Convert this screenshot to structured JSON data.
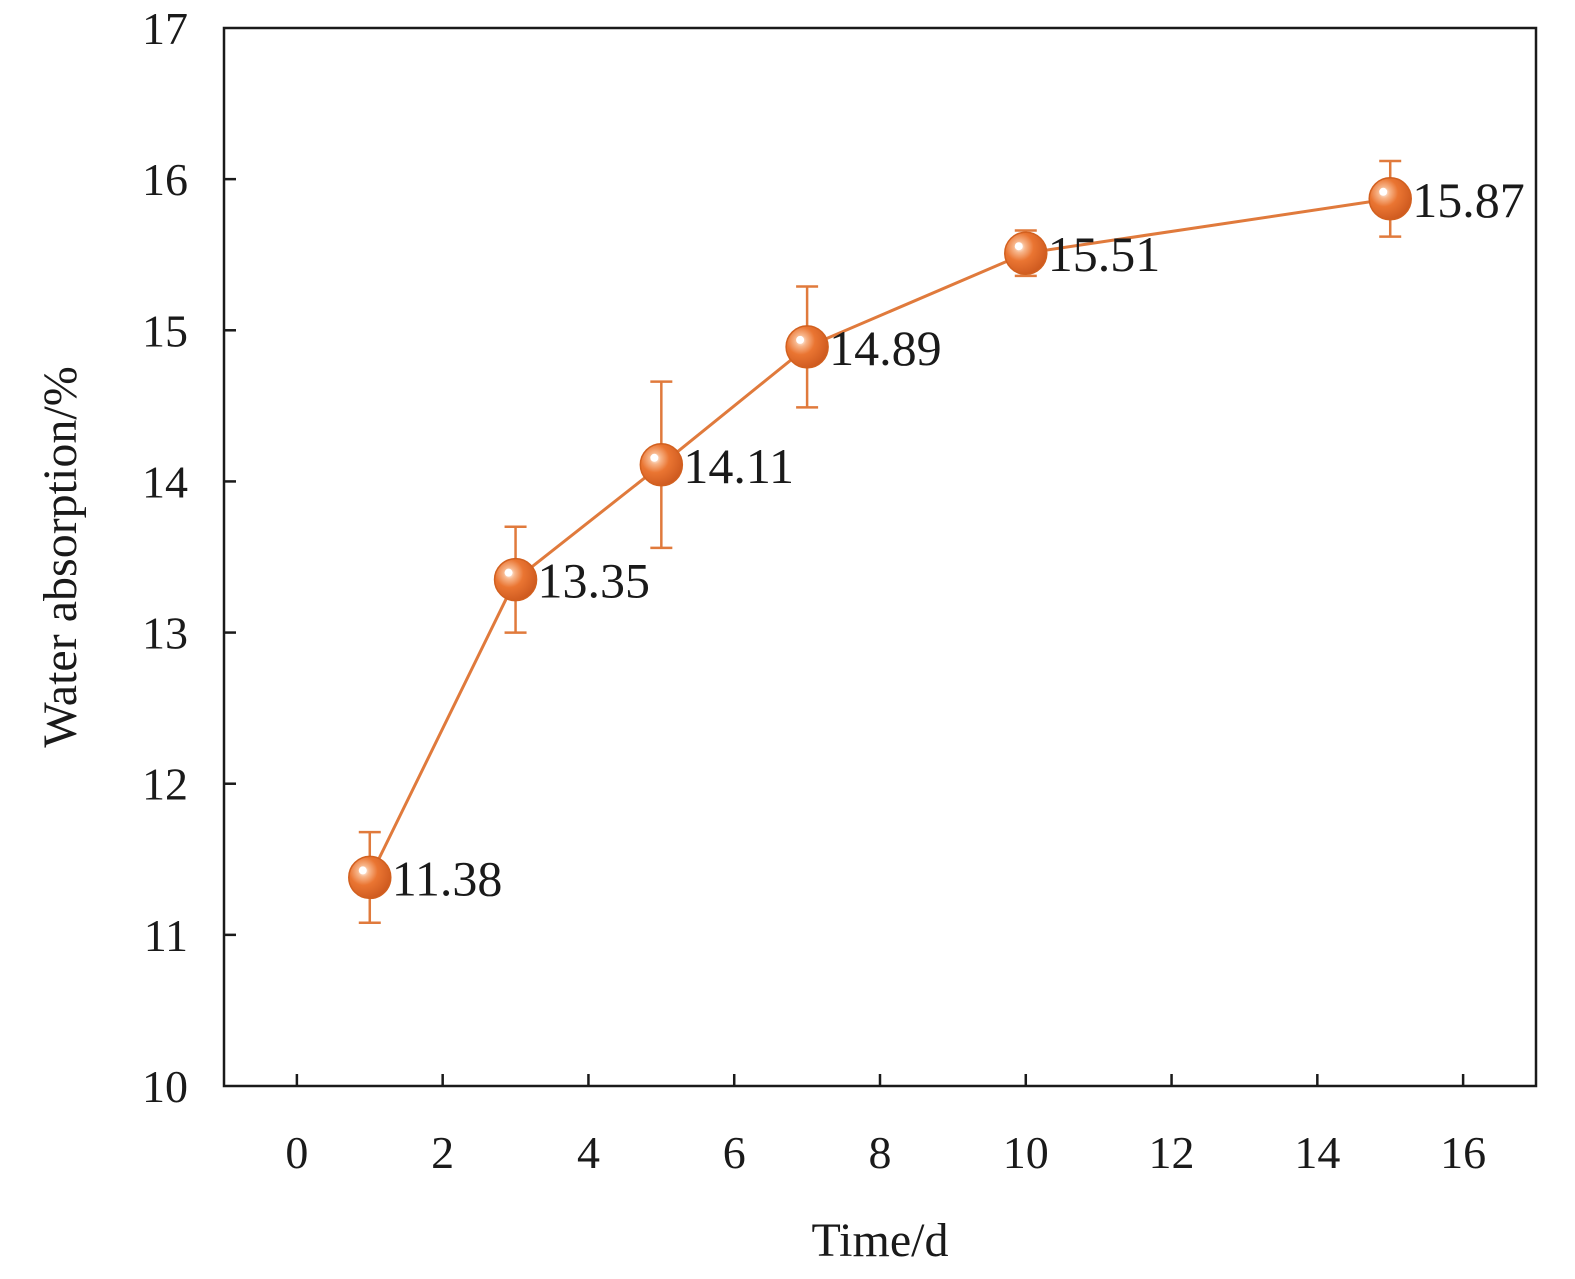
{
  "chart_data": {
    "type": "line",
    "xlabel": "Time/d",
    "ylabel": "Water absorption/%",
    "xlim": [
      -1,
      17
    ],
    "ylim": [
      10,
      17
    ],
    "x_ticks": [
      0,
      2,
      4,
      6,
      8,
      10,
      12,
      14,
      16
    ],
    "y_ticks": [
      10,
      11,
      12,
      13,
      14,
      15,
      16,
      17
    ],
    "grid": false,
    "series": [
      {
        "x": [
          1,
          3,
          5,
          7,
          10,
          15
        ],
        "y": [
          11.38,
          13.35,
          14.11,
          14.89,
          15.51,
          15.87
        ],
        "error_upper": [
          11.68,
          13.7,
          14.66,
          15.29,
          15.66,
          16.12
        ],
        "error_lower": [
          11.08,
          13.0,
          13.56,
          14.49,
          15.36,
          15.62
        ],
        "labels": [
          "11.38",
          "13.35",
          "14.11",
          "14.89",
          "15.51",
          "15.87"
        ]
      }
    ],
    "colors": {
      "line": "#e07a3c",
      "marker": "#e8732f",
      "marker_highlight": "#ffffff",
      "axis": "#1a1a1a"
    }
  }
}
